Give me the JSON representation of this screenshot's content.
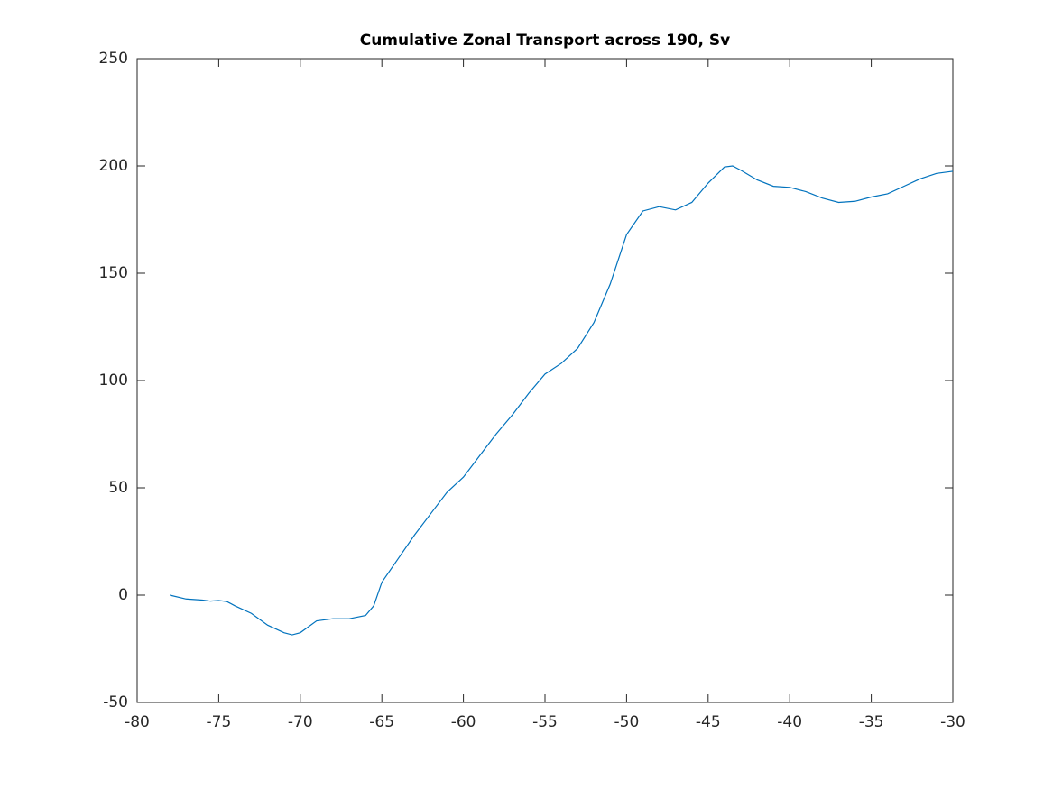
{
  "chart_data": {
    "type": "line",
    "title": "Cumulative Zonal Transport across 190, Sv",
    "x": [
      -78,
      -77,
      -76,
      -75.5,
      -75,
      -74.5,
      -74,
      -73,
      -72,
      -71,
      -70.5,
      -70,
      -69,
      -68,
      -67,
      -66,
      -65.5,
      -65,
      -64,
      -63,
      -62,
      -61,
      -60,
      -59,
      -58,
      -57,
      -56,
      -55,
      -54,
      -53,
      -52,
      -51,
      -50,
      -49,
      -48,
      -47,
      -46,
      -45,
      -44,
      -43.5,
      -43,
      -42,
      -41,
      -40,
      -39,
      -38,
      -37,
      -36,
      -35,
      -34,
      -33,
      -32,
      -31,
      -30
    ],
    "series": [
      {
        "color": "#0072bd",
        "values": [
          0,
          -1.8,
          -2.3,
          -2.8,
          -2.5,
          -3,
          -5,
          -8.5,
          -14,
          -17.5,
          -18.5,
          -17.5,
          -12,
          -11,
          -11,
          -9.5,
          -5,
          6,
          17,
          28,
          38,
          48,
          55,
          65,
          75,
          84,
          94,
          103,
          108,
          115,
          127,
          145,
          168,
          179,
          181,
          179.5,
          183,
          192,
          199.5,
          200,
          198,
          193.5,
          190.5,
          190,
          188,
          185,
          183,
          183.5,
          185.5,
          187,
          190.5,
          194,
          196.5,
          197.5
        ]
      }
    ],
    "xlim": [
      -80,
      -30
    ],
    "xticks": [
      -80,
      -75,
      -70,
      -65,
      -60,
      -55,
      -50,
      -45,
      -40,
      -35,
      -30
    ],
    "ylim": [
      -50,
      250
    ],
    "yticks": [
      -50,
      0,
      50,
      100,
      150,
      200,
      250
    ],
    "grid": false
  }
}
